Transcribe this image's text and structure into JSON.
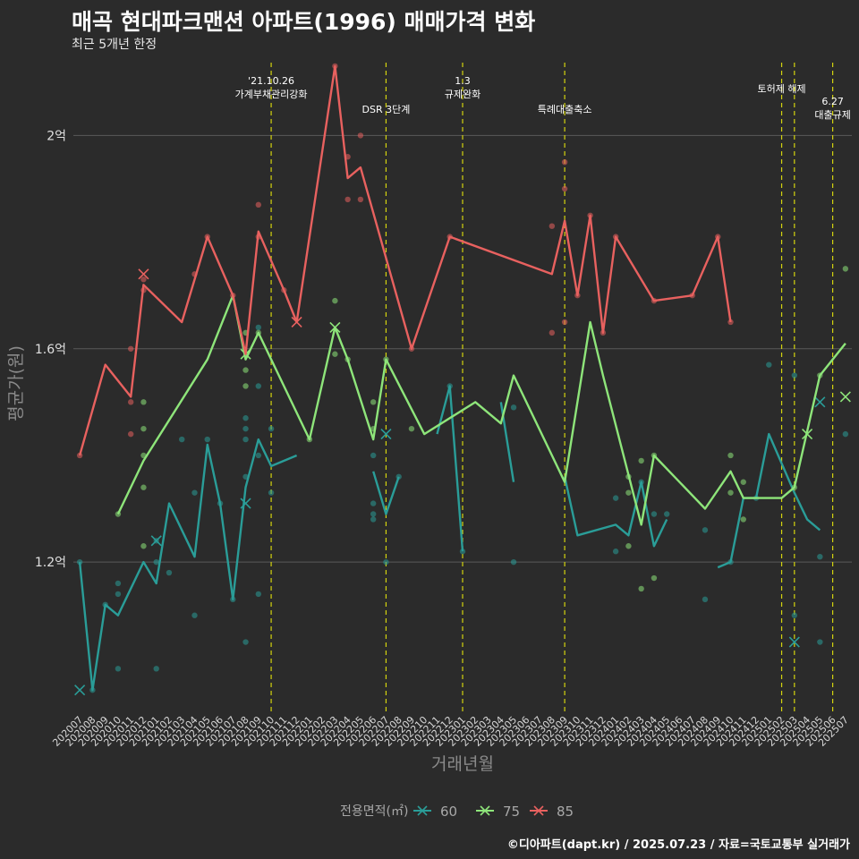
{
  "chart_data": {
    "type": "line",
    "title": "매곡 현대파크맨션 아파트(1996) 매매가격 변화",
    "subtitle": "최근 5개년 한정",
    "xlabel": "거래년월",
    "ylabel": "평균가(원)",
    "caption": "©디아파트(dapt.kr) / 2025.07.23 / 자료=국토교통부 실거래가",
    "legend_title": "전용면적(㎡)",
    "legend_position": "bottom",
    "grid": true,
    "y_unit": "억",
    "ylim": [
      0.92,
      2.15
    ],
    "y_ticks": [
      {
        "value": 1.2,
        "label": "1.2억"
      },
      {
        "value": 1.6,
        "label": "1.6억"
      },
      {
        "value": 2.0,
        "label": "2억"
      }
    ],
    "categories": [
      "202007",
      "202008",
      "202009",
      "202010",
      "202011",
      "202012",
      "202101",
      "202102",
      "202103",
      "202104",
      "202105",
      "202106",
      "202107",
      "202108",
      "202109",
      "202110",
      "202111",
      "202112",
      "202201",
      "202202",
      "202203",
      "202204",
      "202205",
      "202206",
      "202207",
      "202208",
      "202209",
      "202210",
      "202211",
      "202212",
      "202301",
      "202302",
      "202303",
      "202304",
      "202305",
      "202306",
      "202307",
      "202308",
      "202309",
      "202310",
      "202311",
      "202312",
      "202401",
      "202402",
      "202403",
      "202404",
      "202405",
      "202406",
      "202407",
      "202408",
      "202409",
      "202410",
      "202411",
      "202412",
      "202501",
      "202502",
      "202503",
      "202504",
      "202505",
      "202506",
      "202507"
    ],
    "series": [
      {
        "name": "60",
        "color": "#2a9d98",
        "line": [
          [
            "202007",
            1.2
          ],
          [
            "202008",
            0.96
          ],
          [
            "202009",
            1.12
          ],
          [
            "202010",
            1.1
          ],
          [
            "202012",
            1.2
          ],
          [
            "202101",
            1.16
          ],
          [
            "202102",
            1.31
          ],
          [
            "202104",
            1.21
          ],
          [
            "202105",
            1.42
          ],
          [
            "202106",
            1.31
          ],
          [
            "202107",
            1.13
          ],
          [
            "202108",
            1.34
          ],
          [
            "202109",
            1.43
          ],
          [
            "202110",
            1.38
          ],
          [
            "202112",
            1.4
          ],
          null,
          [
            "202206",
            1.37
          ],
          [
            "202207",
            1.29
          ],
          [
            "202208",
            1.36
          ],
          null,
          [
            "202211",
            1.44
          ],
          [
            "202212",
            1.53
          ],
          [
            "202301",
            1.22
          ],
          null,
          [
            "202304",
            1.5
          ],
          [
            "202305",
            1.35
          ],
          null,
          [
            "202309",
            1.36
          ],
          [
            "202310",
            1.25
          ],
          [
            "202401",
            1.27
          ],
          [
            "202402",
            1.25
          ],
          [
            "202403",
            1.35
          ],
          [
            "202404",
            1.23
          ],
          [
            "202405",
            1.28
          ],
          null,
          [
            "202409",
            1.19
          ],
          [
            "202410",
            1.2
          ],
          [
            "202411",
            1.32
          ],
          [
            "202412",
            1.32
          ],
          [
            "202501",
            1.44
          ],
          [
            "202503",
            1.33
          ],
          [
            "202504",
            1.28
          ],
          [
            "202505",
            1.26
          ]
        ],
        "points": [
          [
            "202007",
            1.2
          ],
          [
            "202008",
            0.96
          ],
          [
            "202009",
            1.12
          ],
          [
            "202010",
            1.14
          ],
          [
            "202010",
            1.16
          ],
          [
            "202010",
            1.0
          ],
          [
            "202101",
            1.24
          ],
          [
            "202101",
            1.0
          ],
          [
            "202101",
            1.2
          ],
          [
            "202102",
            1.18
          ],
          [
            "202103",
            1.43
          ],
          [
            "202104",
            1.33
          ],
          [
            "202104",
            1.1
          ],
          [
            "202105",
            1.43
          ],
          [
            "202106",
            1.31
          ],
          [
            "202107",
            1.13
          ],
          [
            "202108",
            1.47
          ],
          [
            "202108",
            1.45
          ],
          [
            "202108",
            1.43
          ],
          [
            "202108",
            1.36
          ],
          [
            "202108",
            1.05
          ],
          [
            "202109",
            1.64
          ],
          [
            "202109",
            1.53
          ],
          [
            "202109",
            1.4
          ],
          [
            "202109",
            1.14
          ],
          [
            "202110",
            1.45
          ],
          [
            "202110",
            1.33
          ],
          [
            "202206",
            1.4
          ],
          [
            "202206",
            1.31
          ],
          [
            "202206",
            1.29
          ],
          [
            "202206",
            1.28
          ],
          [
            "202207",
            1.2
          ],
          [
            "202208",
            1.36
          ],
          [
            "202212",
            1.53
          ],
          [
            "202301",
            1.22
          ],
          [
            "202305",
            1.49
          ],
          [
            "202305",
            1.2
          ],
          [
            "202401",
            1.32
          ],
          [
            "202401",
            1.22
          ],
          [
            "202403",
            1.35
          ],
          [
            "202404",
            1.29
          ],
          [
            "202405",
            1.29
          ],
          [
            "202408",
            1.26
          ],
          [
            "202408",
            1.13
          ],
          [
            "202410",
            1.2
          ],
          [
            "202412",
            1.32
          ],
          [
            "202501",
            1.57
          ],
          [
            "202503",
            1.55
          ],
          [
            "202503",
            1.1
          ],
          [
            "202505",
            1.21
          ],
          [
            "202505",
            1.05
          ],
          [
            "202507",
            1.44
          ]
        ],
        "crosses": [
          [
            "202007",
            0.96
          ],
          [
            "202101",
            1.24
          ],
          [
            "202108",
            1.31
          ],
          [
            "202207",
            1.44
          ],
          [
            "202503",
            1.05
          ],
          [
            "202505",
            1.5
          ]
        ]
      },
      {
        "name": "75",
        "color": "#8ee57a",
        "line": [
          [
            "202010",
            1.29
          ],
          [
            "202012",
            1.39
          ],
          [
            "202105",
            1.58
          ],
          [
            "202107",
            1.7
          ],
          [
            "202108",
            1.58
          ],
          [
            "202109",
            1.63
          ],
          [
            "202201",
            1.43
          ],
          [
            "202203",
            1.64
          ],
          [
            "202204",
            1.58
          ],
          [
            "202206",
            1.43
          ],
          [
            "202207",
            1.58
          ],
          [
            "202210",
            1.44
          ],
          [
            "202302",
            1.5
          ],
          [
            "202304",
            1.46
          ],
          [
            "202305",
            1.55
          ],
          [
            "202309",
            1.35
          ],
          [
            "202311",
            1.65
          ],
          [
            "202312",
            1.55
          ],
          [
            "202403",
            1.27
          ],
          [
            "202404",
            1.4
          ],
          [
            "202408",
            1.3
          ],
          [
            "202410",
            1.37
          ],
          [
            "202411",
            1.32
          ],
          [
            "202502",
            1.32
          ],
          [
            "202503",
            1.34
          ],
          [
            "202505",
            1.55
          ],
          [
            "202507",
            1.61
          ]
        ],
        "points": [
          [
            "202010",
            1.29
          ],
          [
            "202012",
            1.5
          ],
          [
            "202012",
            1.45
          ],
          [
            "202012",
            1.4
          ],
          [
            "202012",
            1.34
          ],
          [
            "202012",
            1.23
          ],
          [
            "202108",
            1.63
          ],
          [
            "202108",
            1.56
          ],
          [
            "202108",
            1.53
          ],
          [
            "202109",
            1.63
          ],
          [
            "202201",
            1.43
          ],
          [
            "202203",
            1.69
          ],
          [
            "202203",
            1.59
          ],
          [
            "202204",
            1.58
          ],
          [
            "202206",
            1.5
          ],
          [
            "202206",
            1.45
          ],
          [
            "202207",
            1.58
          ],
          [
            "202209",
            1.45
          ],
          [
            "202402",
            1.36
          ],
          [
            "202402",
            1.33
          ],
          [
            "202402",
            1.23
          ],
          [
            "202403",
            1.39
          ],
          [
            "202403",
            1.15
          ],
          [
            "202404",
            1.4
          ],
          [
            "202404",
            1.17
          ],
          [
            "202411",
            1.35
          ],
          [
            "202411",
            1.28
          ],
          [
            "202410",
            1.4
          ],
          [
            "202410",
            1.33
          ],
          [
            "202503",
            1.34
          ],
          [
            "202505",
            1.55
          ],
          [
            "202507",
            1.75
          ]
        ],
        "crosses": [
          [
            "202108",
            1.59
          ],
          [
            "202203",
            1.64
          ],
          [
            "202504",
            1.44
          ],
          [
            "202507",
            1.51
          ]
        ]
      },
      {
        "name": "85",
        "color": "#e8615f",
        "line": [
          [
            "202007",
            1.4
          ],
          [
            "202009",
            1.57
          ],
          [
            "202011",
            1.51
          ],
          [
            "202012",
            1.72
          ],
          [
            "202103",
            1.65
          ],
          [
            "202105",
            1.81
          ],
          [
            "202107",
            1.7
          ],
          [
            "202108",
            1.59
          ],
          [
            "202109",
            1.82
          ],
          [
            "202111",
            1.71
          ],
          [
            "202112",
            1.65
          ],
          [
            "202203",
            2.13
          ],
          [
            "202204",
            1.92
          ],
          [
            "202205",
            1.94
          ],
          [
            "202209",
            1.6
          ],
          [
            "202212",
            1.81
          ],
          [
            "202308",
            1.74
          ],
          [
            "202309",
            1.84
          ],
          [
            "202310",
            1.7
          ],
          [
            "202311",
            1.85
          ],
          [
            "202312",
            1.63
          ],
          [
            "202401",
            1.81
          ],
          [
            "202404",
            1.69
          ],
          [
            "202407",
            1.7
          ],
          [
            "202409",
            1.81
          ],
          [
            "202410",
            1.65
          ]
        ],
        "points": [
          [
            "202007",
            1.4
          ],
          [
            "202011",
            1.6
          ],
          [
            "202011",
            1.5
          ],
          [
            "202011",
            1.44
          ],
          [
            "202012",
            1.73
          ],
          [
            "202012",
            1.71
          ],
          [
            "202104",
            1.74
          ],
          [
            "202105",
            1.81
          ],
          [
            "202107",
            1.7
          ],
          [
            "202109",
            1.87
          ],
          [
            "202109",
            1.81
          ],
          [
            "202111",
            1.71
          ],
          [
            "202203",
            2.13
          ],
          [
            "202204",
            1.96
          ],
          [
            "202204",
            1.88
          ],
          [
            "202205",
            2.0
          ],
          [
            "202205",
            1.88
          ],
          [
            "202209",
            1.6
          ],
          [
            "202212",
            1.81
          ],
          [
            "202308",
            1.83
          ],
          [
            "202308",
            1.63
          ],
          [
            "202309",
            1.95
          ],
          [
            "202309",
            1.9
          ],
          [
            "202309",
            1.65
          ],
          [
            "202310",
            1.7
          ],
          [
            "202311",
            1.85
          ],
          [
            "202312",
            1.63
          ],
          [
            "202401",
            1.81
          ],
          [
            "202404",
            1.69
          ],
          [
            "202407",
            1.7
          ],
          [
            "202409",
            1.81
          ],
          [
            "202410",
            1.65
          ]
        ],
        "crosses": [
          [
            "202012",
            1.74
          ],
          [
            "202112",
            1.65
          ]
        ]
      }
    ],
    "annotations": [
      {
        "x": "202110",
        "lines": [
          "'21.10.26",
          "가계부채관리강화"
        ],
        "level": 1
      },
      {
        "x": "202207",
        "lines": [
          "DSR 3단계"
        ],
        "level": 3
      },
      {
        "x": "202301",
        "lines": [
          "1.3",
          "규제완화"
        ],
        "level": 1
      },
      {
        "x": "202309",
        "lines": [
          "특례대출축소"
        ],
        "level": 3
      },
      {
        "x": "202502",
        "lines": [
          "토허제 해제"
        ],
        "level": 2
      },
      {
        "x": "202503",
        "lines": [],
        "level": 0
      },
      {
        "x": "202506",
        "lines": [
          "6.27",
          "대출규제"
        ],
        "level": 4
      }
    ]
  }
}
